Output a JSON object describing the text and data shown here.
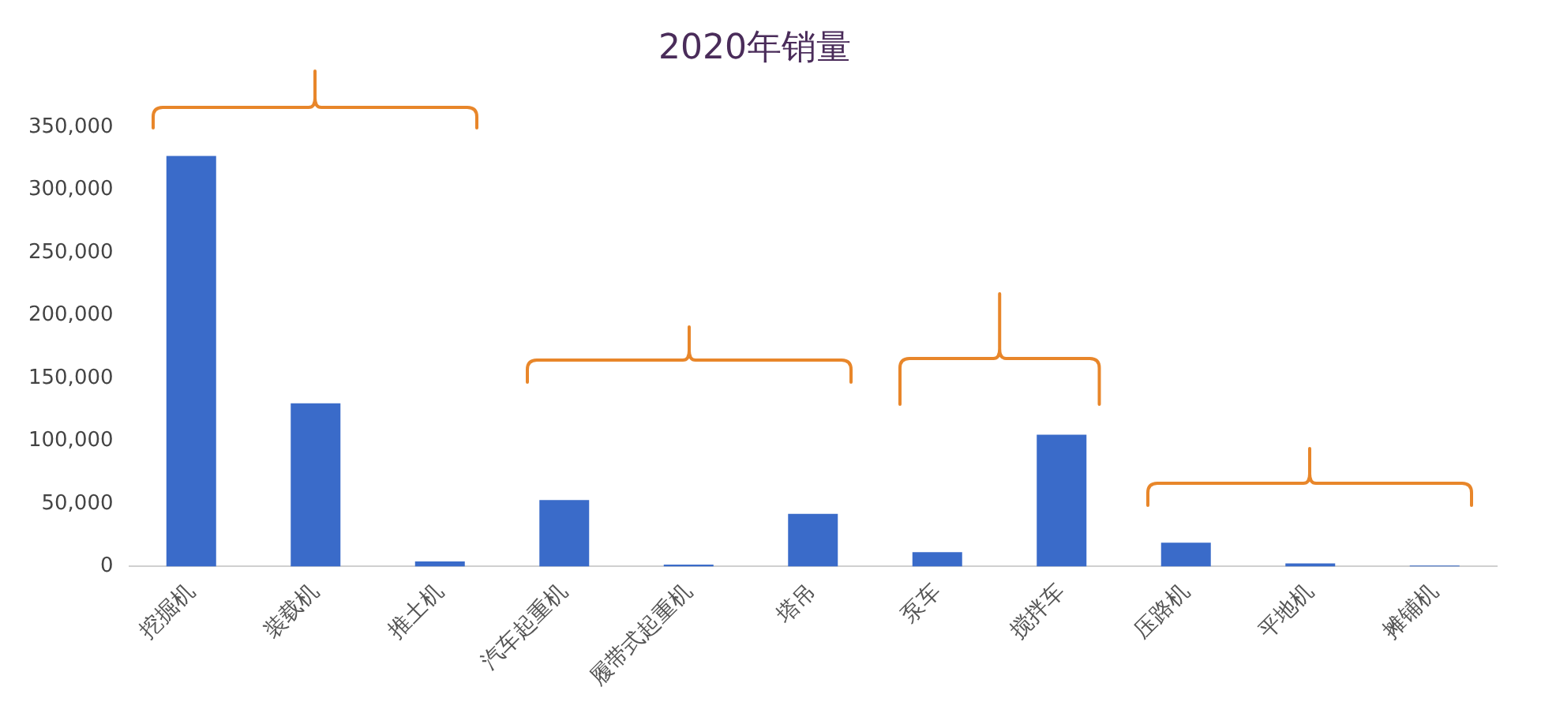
{
  "chart_data": {
    "type": "bar",
    "title": "2020年销量",
    "categories": [
      "挖掘机",
      "装载机",
      "推土机",
      "汽车起重机",
      "履带式起重机",
      "塔吊",
      "泵车",
      "搅拌车",
      "压路机",
      "平地机",
      "摊铺机"
    ],
    "values": [
      327000,
      130000,
      4000,
      53000,
      1500,
      42000,
      11500,
      105000,
      19000,
      2500,
      800
    ],
    "color": "#3a6bc9",
    "ylim": [
      0,
      350000
    ],
    "yticks": [
      {
        "value": 0,
        "label": "0"
      },
      {
        "value": 50000,
        "label": "50,000"
      },
      {
        "value": 100000,
        "label": "100,000"
      },
      {
        "value": 150000,
        "label": "150,000"
      },
      {
        "value": 200000,
        "label": "200,000"
      },
      {
        "value": 250000,
        "label": "250,000"
      },
      {
        "value": 300000,
        "label": "300,000"
      },
      {
        "value": 350000,
        "label": "350,000"
      }
    ],
    "grid": false,
    "legend": false
  }
}
